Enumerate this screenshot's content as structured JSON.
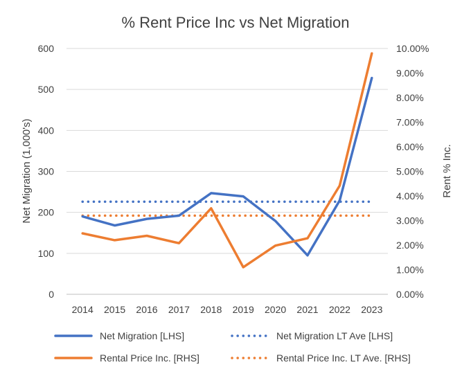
{
  "chart_data": {
    "type": "line",
    "title": "% Rent Price Inc vs Net Migration",
    "ylabel": "Net Migration (1,000's)",
    "y2label": "Rent % Inc.",
    "categories": [
      "2014",
      "2015",
      "2016",
      "2017",
      "2018",
      "2019",
      "2020",
      "2021",
      "2022",
      "2023"
    ],
    "ylim": [
      0,
      600
    ],
    "yticks": [
      0,
      100,
      200,
      300,
      400,
      500,
      600
    ],
    "y2lim": [
      0,
      10
    ],
    "y2ticks": [
      "0.00%",
      "1.00%",
      "2.00%",
      "3.00%",
      "4.00%",
      "5.00%",
      "6.00%",
      "7.00%",
      "8.00%",
      "9.00%",
      "10.00%"
    ],
    "grid": "horizontal",
    "legend": "bottom",
    "series": [
      {
        "name": "Net Migration [LHS]",
        "axis": "left",
        "style": "solid",
        "color": "#4472C4",
        "values": [
          190,
          168,
          184,
          192,
          247,
          239,
          179,
          95,
          229,
          528
        ]
      },
      {
        "name": "Net Migration LT Ave [LHS]",
        "axis": "left",
        "style": "dotted",
        "color": "#4472C4",
        "values": [
          226,
          226,
          226,
          226,
          226,
          226,
          226,
          226,
          226,
          226
        ]
      },
      {
        "name": "Rental Price Inc. [RHS]",
        "axis": "right",
        "style": "solid",
        "color": "#ED7D31",
        "values": [
          2.48,
          2.2,
          2.38,
          2.08,
          3.5,
          1.1,
          1.98,
          2.28,
          4.42,
          9.8
        ]
      },
      {
        "name": "Rental Price Inc. LT Ave. [RHS]",
        "axis": "right",
        "style": "dotted",
        "color": "#ED7D31",
        "values": [
          3.2,
          3.2,
          3.2,
          3.2,
          3.2,
          3.2,
          3.2,
          3.2,
          3.2,
          3.2
        ]
      }
    ]
  }
}
